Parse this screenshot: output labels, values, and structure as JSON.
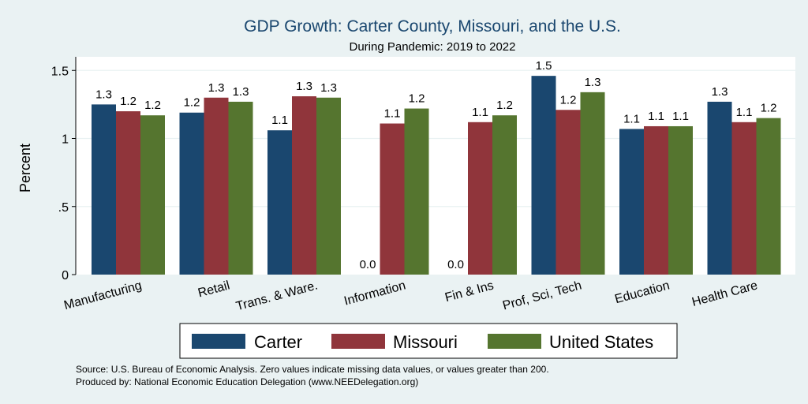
{
  "chart_data": {
    "type": "bar",
    "title": "GDP Growth: Carter County, Missouri, and the U.S.",
    "subtitle": "During Pandemic: 2019 to 2022",
    "ylabel": "Percent",
    "xlabel": "",
    "ylim": [
      0,
      1.6
    ],
    "yticks": [
      0,
      0.5,
      1,
      1.5
    ],
    "ytick_labels": [
      "0",
      ".5",
      "1",
      "1.5"
    ],
    "grid": true,
    "categories": [
      "Manufacturing",
      "Retail",
      "Trans. & Ware.",
      "Information",
      "Fin & Ins",
      "Prof, Sci, Tech",
      "Education",
      "Health Care"
    ],
    "series": [
      {
        "name": "Carter",
        "color": "#1a476f",
        "values": [
          1.25,
          1.19,
          1.06,
          0,
          0,
          1.46,
          1.07,
          1.27
        ],
        "labels": [
          "1.3",
          "1.2",
          "1.1",
          "0.0",
          "0.0",
          "1.5",
          "1.1",
          "1.3"
        ]
      },
      {
        "name": "Missouri",
        "color": "#90353b",
        "values": [
          1.2,
          1.3,
          1.31,
          1.11,
          1.12,
          1.21,
          1.09,
          1.12
        ],
        "labels": [
          "1.2",
          "1.3",
          "1.3",
          "1.1",
          "1.1",
          "1.2",
          "1.1",
          "1.1"
        ]
      },
      {
        "name": "United States",
        "color": "#55752f",
        "values": [
          1.17,
          1.27,
          1.3,
          1.22,
          1.17,
          1.34,
          1.09,
          1.15
        ],
        "labels": [
          "1.2",
          "1.3",
          "1.3",
          "1.2",
          "1.2",
          "1.3",
          "1.1",
          "1.2"
        ]
      }
    ],
    "legend_position": "bottom"
  },
  "footer": {
    "source": "Source: U.S. Bureau of Economic Analysis. Zero values indicate missing data values, or values greater than 200.",
    "produced_by": "Produced by: National Economic Education Delegation (www.NEEDelegation.org)"
  }
}
